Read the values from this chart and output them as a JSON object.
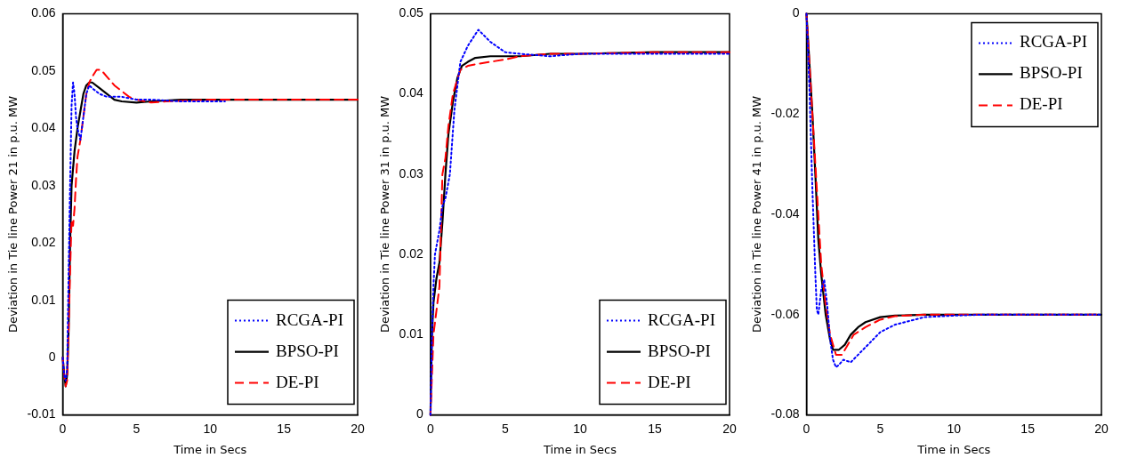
{
  "chart_data": [
    {
      "type": "line",
      "xlabel": "Time in Secs",
      "ylabel": "Deviation in Tie line Power 21 in p.u. MW",
      "xlim": [
        0,
        20
      ],
      "xticks": [
        0,
        5,
        10,
        15,
        20
      ],
      "ylim": [
        -0.01,
        0.06
      ],
      "yticks": [
        -0.01,
        0,
        0.01,
        0.02,
        0.03,
        0.04,
        0.05,
        0.06
      ],
      "legend": "bottom right",
      "grid": false,
      "series": [
        {
          "name": "RCGA-PI",
          "color": "#0000ff",
          "line_style": "dotted",
          "x": [
            0,
            0.1,
            0.2,
            0.3,
            0.4,
            0.5,
            0.6,
            0.7,
            0.8,
            0.9,
            1,
            1.2,
            1.4,
            1.6,
            1.8,
            2,
            2.5,
            3,
            4,
            5,
            6,
            8,
            10,
            11
          ],
          "values": [
            0,
            -0.003,
            -0.004,
            -0.002,
            0.015,
            0.03,
            0.044,
            0.048,
            0.046,
            0.042,
            0.04,
            0.038,
            0.042,
            0.046,
            0.0475,
            0.047,
            0.046,
            0.0455,
            0.0455,
            0.045,
            0.045,
            0.0447,
            0.0447,
            0.0447
          ]
        },
        {
          "name": "BPSO-PI",
          "color": "#000000",
          "line_style": "solid",
          "x": [
            0,
            0.1,
            0.2,
            0.3,
            0.4,
            0.5,
            0.6,
            0.8,
            1,
            1.2,
            1.4,
            1.6,
            1.8,
            2,
            2.5,
            3,
            3.5,
            4,
            5,
            6,
            8,
            10,
            20
          ],
          "values": [
            0,
            -0.003,
            -0.005,
            -0.003,
            0.005,
            0.02,
            0.03,
            0.036,
            0.04,
            0.043,
            0.046,
            0.0475,
            0.048,
            0.048,
            0.047,
            0.046,
            0.045,
            0.0447,
            0.0445,
            0.0447,
            0.045,
            0.045,
            0.045
          ]
        },
        {
          "name": "DE-PI",
          "color": "#ff0000",
          "line_style": "dashed",
          "x": [
            0,
            0.1,
            0.2,
            0.3,
            0.4,
            0.5,
            0.6,
            0.7,
            0.8,
            0.9,
            1,
            1.2,
            1.4,
            1.6,
            1.8,
            2,
            2.3,
            2.6,
            3,
            3.5,
            4,
            4.5,
            5,
            6,
            7,
            10,
            20
          ],
          "values": [
            0,
            -0.003,
            -0.005,
            -0.004,
            0.005,
            0.015,
            0.024,
            0.023,
            0.026,
            0.031,
            0.035,
            0.038,
            0.042,
            0.046,
            0.048,
            0.049,
            0.0502,
            0.0502,
            0.049,
            0.0475,
            0.0465,
            0.0455,
            0.045,
            0.0445,
            0.0447,
            0.045,
            0.045
          ]
        }
      ]
    },
    {
      "type": "line",
      "xlabel": "Time in Secs",
      "ylabel": "Deviation in Tie line Power 31 in p.u. MW",
      "xlim": [
        0,
        20
      ],
      "xticks": [
        0,
        5,
        10,
        15,
        20
      ],
      "ylim": [
        0,
        0.05
      ],
      "yticks": [
        0,
        0.01,
        0.02,
        0.03,
        0.04,
        0.05
      ],
      "legend": "bottom right",
      "grid": false,
      "series": [
        {
          "name": "RCGA-PI",
          "color": "#0000ff",
          "line_style": "dotted",
          "x": [
            0,
            0.1,
            0.2,
            0.3,
            0.6,
            0.8,
            1,
            1.3,
            1.6,
            2,
            2.5,
            3.2,
            4,
            5,
            6,
            8,
            10,
            12,
            15,
            20
          ],
          "values": [
            0,
            0.01,
            0.016,
            0.02,
            0.023,
            0.026,
            0.027,
            0.03,
            0.038,
            0.044,
            0.046,
            0.048,
            0.0465,
            0.0452,
            0.045,
            0.0447,
            0.045,
            0.045,
            0.045,
            0.045
          ]
        },
        {
          "name": "BPSO-PI",
          "color": "#000000",
          "line_style": "solid",
          "x": [
            0,
            0.1,
            0.2,
            0.4,
            0.6,
            0.8,
            1,
            1.2,
            1.5,
            1.8,
            2.1,
            2.5,
            3,
            4,
            6,
            8,
            10,
            15,
            20
          ],
          "values": [
            0,
            0.01,
            0.014,
            0.017,
            0.019,
            0.024,
            0.03,
            0.035,
            0.039,
            0.042,
            0.0435,
            0.044,
            0.0445,
            0.0447,
            0.0447,
            0.045,
            0.045,
            0.0452,
            0.0452
          ]
        },
        {
          "name": "DE-PI",
          "color": "#ff0000",
          "line_style": "dashed",
          "x": [
            0,
            0.2,
            0.4,
            0.6,
            0.8,
            1,
            1.2,
            1.5,
            2,
            2.5,
            3,
            4,
            5,
            6,
            8,
            10,
            15,
            20
          ],
          "values": [
            0,
            0.01,
            0.013,
            0.016,
            0.03,
            0.032,
            0.036,
            0.04,
            0.043,
            0.0435,
            0.0437,
            0.044,
            0.0443,
            0.0447,
            0.045,
            0.045,
            0.0452,
            0.0452
          ]
        }
      ]
    },
    {
      "type": "line",
      "xlabel": "Time in Secs",
      "ylabel": "Deviation in Tie line Power 41 in p.u. MW",
      "xlim": [
        0,
        20
      ],
      "xticks": [
        0,
        5,
        10,
        15,
        20
      ],
      "ylim": [
        -0.08,
        0
      ],
      "yticks": [
        -0.08,
        -0.06,
        -0.04,
        -0.02,
        0
      ],
      "legend": "top right",
      "grid": false,
      "series": [
        {
          "name": "RCGA-PI",
          "color": "#0000ff",
          "line_style": "dotted",
          "x": [
            0,
            0.2,
            0.4,
            0.6,
            0.7,
            0.8,
            1,
            1.2,
            1.4,
            1.6,
            1.8,
            2,
            2.2,
            2.5,
            3,
            3.5,
            4,
            5,
            6,
            8,
            10,
            12,
            20
          ],
          "values": [
            0,
            -0.015,
            -0.035,
            -0.052,
            -0.059,
            -0.06,
            -0.055,
            -0.053,
            -0.058,
            -0.065,
            -0.069,
            -0.0705,
            -0.07,
            -0.069,
            -0.0695,
            -0.068,
            -0.0665,
            -0.0635,
            -0.062,
            -0.0605,
            -0.0602,
            -0.06,
            -0.06
          ]
        },
        {
          "name": "BPSO-PI",
          "color": "#000000",
          "line_style": "solid",
          "x": [
            0,
            0.2,
            0.4,
            0.6,
            0.8,
            1,
            1.3,
            1.6,
            1.8,
            2.2,
            2.6,
            3,
            3.5,
            4,
            5,
            6,
            8,
            10,
            20
          ],
          "values": [
            0,
            -0.01,
            -0.02,
            -0.032,
            -0.045,
            -0.052,
            -0.06,
            -0.065,
            -0.067,
            -0.067,
            -0.066,
            -0.064,
            -0.0625,
            -0.0615,
            -0.0605,
            -0.0602,
            -0.06,
            -0.06,
            -0.06
          ]
        },
        {
          "name": "DE-PI",
          "color": "#ff0000",
          "line_style": "dashed",
          "x": [
            0,
            0.4,
            0.8,
            1,
            1.3,
            1.6,
            2,
            2.4,
            2.8,
            3.2,
            4,
            5,
            6,
            8,
            20
          ],
          "values": [
            0,
            -0.02,
            -0.04,
            -0.05,
            -0.058,
            -0.064,
            -0.068,
            -0.068,
            -0.066,
            -0.064,
            -0.0625,
            -0.061,
            -0.0603,
            -0.06,
            -0.06
          ]
        }
      ]
    }
  ]
}
